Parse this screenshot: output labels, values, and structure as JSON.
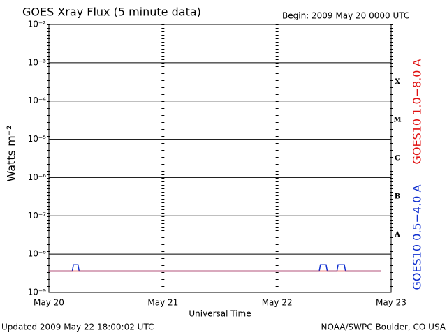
{
  "chart_data": {
    "type": "line",
    "title": "GOES Xray Flux (5 minute data)",
    "subtitle": "Begin:  2009 May 20 0000 UTC",
    "x_label": "Universal Time",
    "y_label": "Watts m⁻²",
    "footer_left": "Updated 2009 May 22 18:00:02 UTC",
    "footer_right": "NOAA/SWPC Boulder, CO USA",
    "yscale": "log",
    "grid": true,
    "ylim": [
      1e-09,
      0.01
    ],
    "yticks": [
      {
        "value": 1e-09,
        "label": "10⁻⁹"
      },
      {
        "value": 1e-08,
        "label": "10⁻⁸"
      },
      {
        "value": 1e-07,
        "label": "10⁻⁷"
      },
      {
        "value": 1e-06,
        "label": "10⁻⁶"
      },
      {
        "value": 1e-05,
        "label": "10⁻⁵"
      },
      {
        "value": 0.0001,
        "label": "10⁻⁴"
      },
      {
        "value": 0.001,
        "label": "10⁻³"
      },
      {
        "value": 0.01,
        "label": "10⁻²"
      }
    ],
    "xlim": [
      0,
      3
    ],
    "xticks": [
      {
        "value": 0,
        "label": "May 20"
      },
      {
        "value": 1,
        "label": "May 21"
      },
      {
        "value": 2,
        "label": "May 22"
      },
      {
        "value": 3,
        "label": "May 23"
      }
    ],
    "flare_classes": [
      "A",
      "B",
      "C",
      "M",
      "X"
    ],
    "x": [
      0,
      0.205,
      0.215,
      0.255,
      0.265,
      2.37,
      2.38,
      2.43,
      2.44,
      2.525,
      2.535,
      2.59,
      2.6,
      2.91
    ],
    "series": [
      {
        "name": "GOES10 0.5−4.0 A",
        "color": "#1030d0",
        "values": [
          3.6e-09,
          3.6e-09,
          5.3e-09,
          5.3e-09,
          3.6e-09,
          3.6e-09,
          5.3e-09,
          5.3e-09,
          3.6e-09,
          3.6e-09,
          5.3e-09,
          5.3e-09,
          3.6e-09,
          3.6e-09
        ]
      },
      {
        "name": "GOES10 1.0−8.0 A",
        "color": "#e01010",
        "values": [
          3.6e-09,
          3.6e-09,
          3.6e-09,
          3.6e-09,
          3.6e-09,
          3.6e-09,
          3.6e-09,
          3.6e-09,
          3.6e-09,
          3.6e-09,
          3.6e-09,
          3.6e-09,
          3.6e-09,
          3.6e-09
        ]
      }
    ]
  }
}
